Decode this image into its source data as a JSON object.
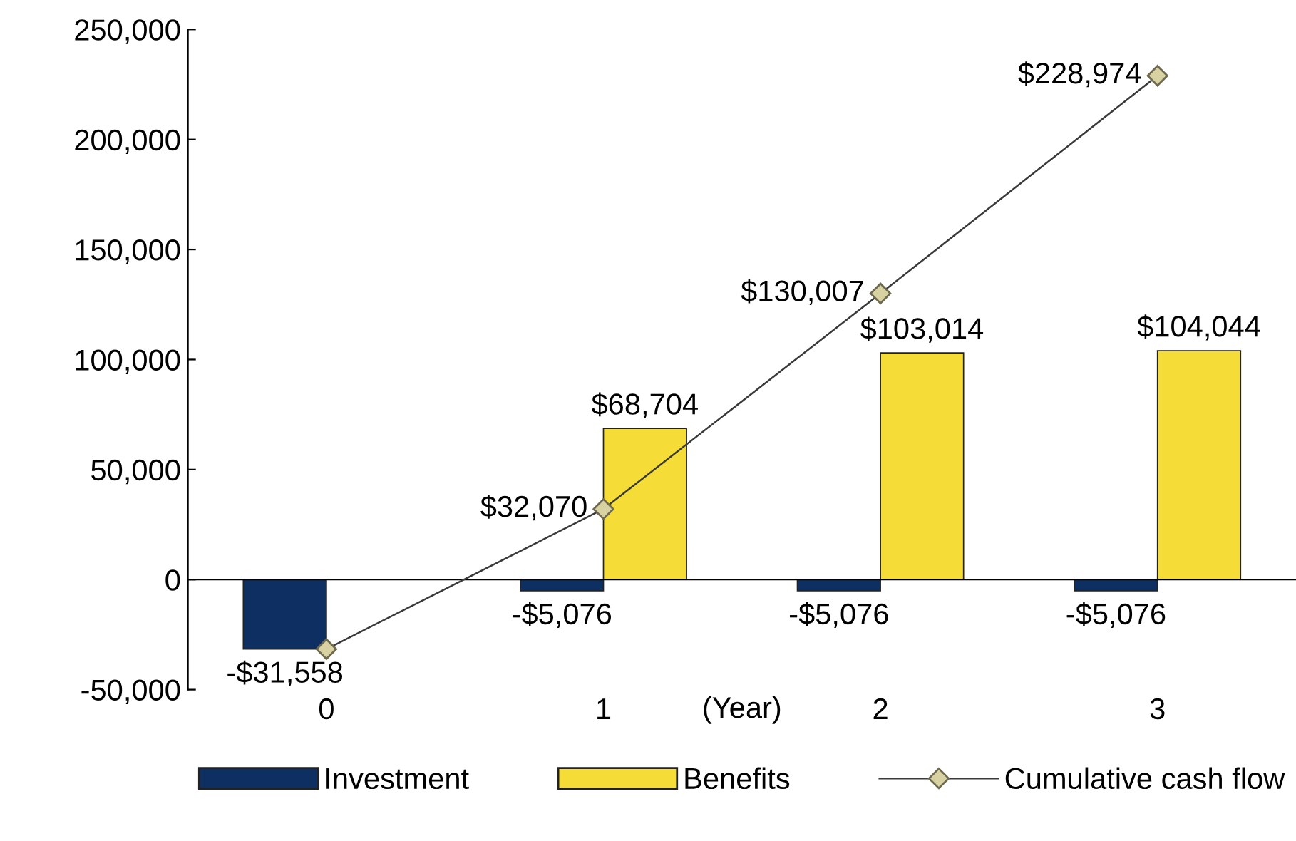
{
  "chart_data": {
    "type": "bar",
    "categories": [
      "0",
      "1",
      "2",
      "3"
    ],
    "xlabel": "(Year)",
    "series": [
      {
        "name": "Investment",
        "color": "#0e2f62",
        "values": [
          -31558,
          -5076,
          -5076,
          -5076
        ],
        "value_labels": [
          "-$31,558",
          "-$5,076",
          "-$5,076",
          "-$5,076"
        ]
      },
      {
        "name": "Benefits",
        "color": "#f6dc36",
        "values": [
          null,
          68704,
          103014,
          104044
        ],
        "value_labels": [
          null,
          "$68,704",
          "$103,014",
          "$104,044"
        ]
      },
      {
        "name": "Cumulative cash flow",
        "type": "line",
        "color": "#3a3a3a",
        "marker": "diamond",
        "values": [
          -31600,
          32070,
          130007,
          228974
        ],
        "value_labels": [
          null,
          "$32,070",
          "$130,007",
          "$228,974"
        ]
      }
    ],
    "ylim": [
      -50000,
      250000
    ],
    "yticks": [
      {
        "value": -50000,
        "label": "-50,000"
      },
      {
        "value": 0,
        "label": "0"
      },
      {
        "value": 50000,
        "label": "50,000"
      },
      {
        "value": 100000,
        "label": "100,000"
      },
      {
        "value": 150000,
        "label": "150,000"
      },
      {
        "value": 200000,
        "label": "200,000"
      },
      {
        "value": 250000,
        "label": "250,000"
      }
    ],
    "legend": "bottom"
  }
}
